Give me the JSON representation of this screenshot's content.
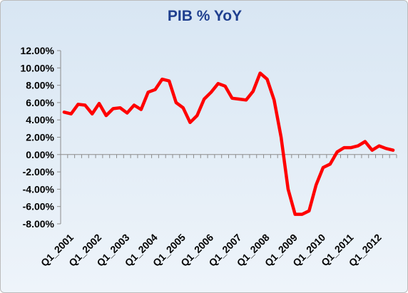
{
  "chart_data": {
    "type": "line",
    "title": "PIB % YoY",
    "xlabel": "",
    "ylabel": "",
    "ylim": [
      -8,
      12
    ],
    "yticks": [
      12,
      10,
      8,
      6,
      4,
      2,
      0,
      -2,
      -4,
      -6,
      -8
    ],
    "ytick_labels": [
      "12.00%",
      "10.00%",
      "8.00%",
      "6.00%",
      "4.00%",
      "2.00%",
      "0.00%",
      "-2.00%",
      "-4.00%",
      "-6.00%",
      "-8.00%"
    ],
    "xtick_labels": [
      "Q1_2001",
      "Q1_2002",
      "Q1_2003",
      "Q1_2004",
      "Q1_2005",
      "Q1_2006",
      "Q1_2007",
      "Q1_2008",
      "Q1_2009",
      "Q1_2010",
      "Q1_2011",
      "Q1_2012"
    ],
    "grid": false,
    "legend": "none",
    "series": [
      {
        "color": "#ff0000",
        "x": [
          "Q1_2001",
          "Q2_2001",
          "Q3_2001",
          "Q4_2001",
          "Q1_2002",
          "Q2_2002",
          "Q3_2002",
          "Q4_2002",
          "Q1_2003",
          "Q2_2003",
          "Q3_2003",
          "Q4_2003",
          "Q1_2004",
          "Q2_2004",
          "Q3_2004",
          "Q4_2004",
          "Q1_2005",
          "Q2_2005",
          "Q3_2005",
          "Q4_2005",
          "Q1_2006",
          "Q2_2006",
          "Q3_2006",
          "Q4_2006",
          "Q1_2007",
          "Q2_2007",
          "Q3_2007",
          "Q4_2007",
          "Q1_2008",
          "Q2_2008",
          "Q3_2008",
          "Q4_2008",
          "Q1_2009",
          "Q2_2009",
          "Q3_2009",
          "Q4_2009",
          "Q1_2010",
          "Q2_2010",
          "Q3_2010",
          "Q4_2010",
          "Q1_2011",
          "Q2_2011",
          "Q3_2011",
          "Q4_2011",
          "Q1_2012",
          "Q2_2012",
          "Q3_2012",
          "Q4_2012"
        ],
        "values": [
          4.9,
          4.7,
          5.8,
          5.7,
          4.7,
          5.9,
          4.5,
          5.3,
          5.4,
          4.8,
          5.7,
          5.2,
          7.2,
          7.5,
          8.7,
          8.5,
          6.0,
          5.4,
          3.7,
          4.5,
          6.4,
          7.2,
          8.2,
          7.9,
          6.5,
          6.4,
          6.3,
          7.3,
          9.4,
          8.7,
          6.3,
          2.0,
          -4.0,
          -6.9,
          -6.9,
          -6.5,
          -3.5,
          -1.5,
          -1.1,
          0.3,
          0.8,
          0.8,
          1.0,
          1.5,
          0.5,
          1.0,
          0.7,
          0.5
        ]
      }
    ]
  }
}
